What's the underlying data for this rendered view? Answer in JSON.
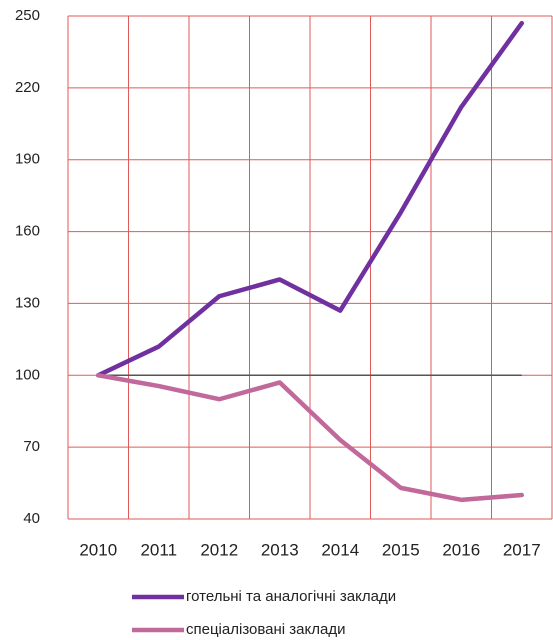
{
  "chart_data": {
    "type": "line",
    "categories": [
      "2010",
      "2011",
      "2012",
      "2013",
      "2014",
      "2015",
      "2016",
      "2017"
    ],
    "series": [
      {
        "name": "готельні та аналогічні заклади",
        "color": "#7030a0",
        "values": [
          100,
          112,
          133,
          140,
          127,
          168,
          212,
          247
        ]
      },
      {
        "name": "спеціалізовані заклади",
        "color": "#c0699a",
        "values": [
          100,
          95.5,
          90,
          97,
          73,
          53,
          48,
          50
        ]
      }
    ],
    "baseline": 100,
    "baseline_color": "#555555",
    "ylim": [
      40,
      250
    ],
    "yticks": [
      40,
      70,
      100,
      130,
      160,
      190,
      220,
      250
    ],
    "grid": true,
    "grid_color": "#e05a5a",
    "legend": "bottom"
  }
}
